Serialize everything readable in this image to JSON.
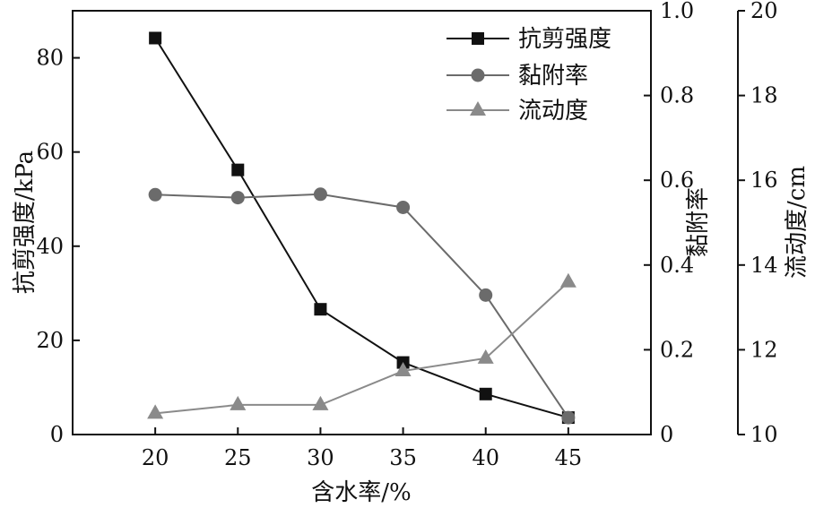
{
  "chart_data": {
    "type": "line",
    "xlabel": "含水率/%",
    "x": [
      20,
      25,
      30,
      35,
      40,
      45
    ],
    "xlim": [
      15,
      50
    ],
    "x_ticks": [
      "20",
      "25",
      "30",
      "35",
      "40",
      "45"
    ],
    "axes": {
      "left": {
        "label": "抗剪强度/kPa",
        "ylim": [
          0,
          90
        ],
        "ticks": [
          "0",
          "20",
          "40",
          "60",
          "80"
        ],
        "tick_values": [
          0,
          20,
          40,
          60,
          80
        ]
      },
      "right1": {
        "label": "黏附率",
        "ylim": [
          0,
          1.0
        ],
        "ticks": [
          "0",
          "0.2",
          "0.4",
          "0.6",
          "0.8",
          "1.0"
        ],
        "tick_values": [
          0,
          0.2,
          0.4,
          0.6,
          0.8,
          1.0
        ]
      },
      "right2": {
        "label": "流动度/cm",
        "ylim": [
          10,
          20
        ],
        "ticks": [
          "10",
          "12",
          "14",
          "16",
          "18",
          "20"
        ],
        "tick_values": [
          10,
          12,
          14,
          16,
          18,
          20
        ]
      }
    },
    "series": [
      {
        "name": "抗剪强度",
        "axis": "left",
        "marker": "square",
        "color": "#111111",
        "values": [
          84.2,
          56.2,
          26.6,
          15.3,
          8.6,
          3.6
        ]
      },
      {
        "name": "黏附率",
        "axis": "right1",
        "marker": "circle",
        "color": "#6b6b6b",
        "values": [
          0.566,
          0.559,
          0.567,
          0.536,
          0.329,
          0.04
        ]
      },
      {
        "name": "流动度",
        "axis": "right2",
        "marker": "triangle",
        "color": "#8a8a8a",
        "values": [
          10.5,
          10.7,
          10.7,
          11.5,
          11.8,
          13.6
        ]
      }
    ],
    "legend_position": "top-right",
    "grid": false
  }
}
